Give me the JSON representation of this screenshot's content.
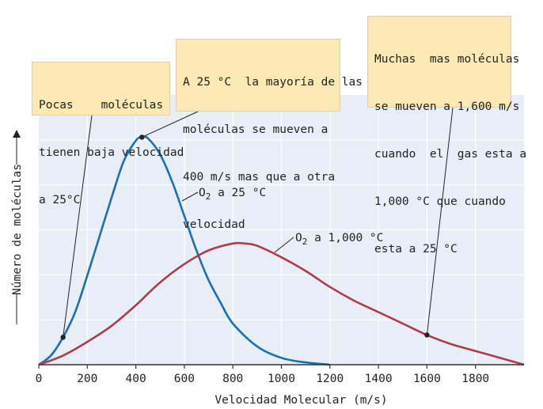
{
  "chart_data": {
    "type": "line",
    "xlabel": "Velocidad Molecular (m/s)",
    "ylabel": "Número de moléculas",
    "xlim": [
      0,
      2000
    ],
    "ylim": [
      0,
      1.0
    ],
    "xticks": [
      "0",
      "200",
      "400",
      "600",
      "800",
      "1000",
      "1200",
      "1400",
      "1600",
      "1800"
    ],
    "xtick_values": [
      0,
      200,
      400,
      600,
      800,
      1000,
      1200,
      1400,
      1600,
      1800
    ],
    "grid": true,
    "series": [
      {
        "name": "O2 a   25 °C",
        "name_parts": {
          "species": "O",
          "subscript": "2",
          "rest": " a   25 °C"
        },
        "color": "#1a6fb5",
        "x": [
          0,
          50,
          100,
          150,
          200,
          250,
          300,
          350,
          400,
          425,
          450,
          500,
          550,
          600,
          650,
          700,
          750,
          800,
          900,
          1000,
          1100,
          1200
        ],
        "y": [
          0,
          0.04,
          0.12,
          0.23,
          0.39,
          0.56,
          0.73,
          0.89,
          0.98,
          0.995,
          0.99,
          0.92,
          0.8,
          0.65,
          0.5,
          0.37,
          0.27,
          0.18,
          0.08,
          0.03,
          0.01,
          0.0
        ]
      },
      {
        "name": "O2 a  1,000 °C",
        "name_parts": {
          "species": "O",
          "subscript": "2",
          "rest": " a  1,000 °C"
        },
        "color": "#b03a48",
        "x": [
          0,
          100,
          200,
          300,
          400,
          500,
          600,
          700,
          800,
          850,
          900,
          1000,
          1100,
          1200,
          1300,
          1400,
          1500,
          1600,
          1700,
          1800,
          1900,
          2000
        ],
        "y": [
          0,
          0.04,
          0.1,
          0.17,
          0.26,
          0.36,
          0.44,
          0.5,
          0.53,
          0.53,
          0.52,
          0.47,
          0.41,
          0.34,
          0.28,
          0.23,
          0.18,
          0.13,
          0.09,
          0.06,
          0.03,
          0.0
        ]
      }
    ],
    "annotations": [
      {
        "id": "callout-1",
        "lines": [
          "Pocas    moléculas",
          "tienen baja velocidad",
          "a 25°C"
        ],
        "point": {
          "x": 100,
          "y": 0.12
        }
      },
      {
        "id": "callout-2",
        "lines": [
          "A 25 °C  la mayoría de las",
          "moléculas se mueven a",
          "400 m/s mas que a otra",
          "velocidad"
        ],
        "point": {
          "x": 425,
          "y": 0.995
        }
      },
      {
        "id": "callout-3",
        "lines": [
          "Muchas  mas moléculas",
          "se mueven a 1,600 m/s",
          "cuando  el  gas esta a",
          "1,000 °C que cuando",
          "esta a 25 °C"
        ],
        "point": {
          "x": 1600,
          "y": 0.13
        }
      }
    ]
  },
  "colors": {
    "plot_background": "#e8eef8",
    "grid": "#ffffff",
    "callout_background": "#fde9b4"
  }
}
